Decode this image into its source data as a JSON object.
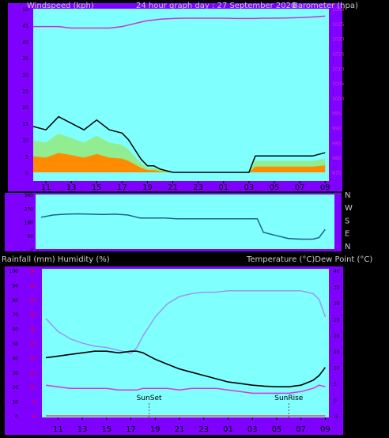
{
  "header": {
    "left": "Windspeed (kph)",
    "center": "24 hour graph day : 27 September 2020",
    "right": "Barometer (hpa)"
  },
  "panel3_header": {
    "left": "Rainfall (mm)  Humidity (%)",
    "right": "Temperature (°C)Dew Point (°C)"
  },
  "x_ticks": [
    "11",
    "13",
    "15",
    "17",
    "19",
    "21",
    "23",
    "01",
    "03",
    "05",
    "07",
    "09"
  ],
  "colors": {
    "page": "#000000",
    "frame": "#7f00ff",
    "plot": "#80ffff",
    "wind_speed": "#000000",
    "wind_gust": "#00b000",
    "wind_band": "#90ee90",
    "wind_orange": "#ff8c00",
    "barometer": "#cc33cc",
    "direction": "#1e5f8a",
    "temperature": "#000000",
    "humidity": "#9999ee",
    "dew_point": "#dd33dd",
    "rain_axis": "#ff0000"
  },
  "chart_data": [
    {
      "type": "line",
      "title": "24 hour graph day : 27 September 2020",
      "ylabel": "Windspeed (kph)",
      "y2label": "Barometer (hpa)",
      "ylim": [
        0,
        50
      ],
      "y2lim": [
        975,
        1030
      ],
      "yticks": [
        "50",
        "45",
        "40",
        "35",
        "30",
        "25",
        "20",
        "15",
        "10",
        "5",
        "0"
      ],
      "y2ticks": [
        "1030",
        "1025",
        "1020",
        "1015",
        "1010",
        "1005",
        "1000",
        "995",
        "990",
        "985",
        "980",
        "975"
      ],
      "x_hours": [
        10,
        11,
        12,
        13,
        14,
        15,
        16,
        17,
        17.5,
        18,
        18.5,
        19,
        19.5,
        20,
        21,
        22,
        23,
        0,
        1,
        2,
        3,
        3.5,
        4,
        5,
        6,
        7,
        8,
        9
      ],
      "series": [
        {
          "name": "Windspeed (kph)",
          "values": [
            14,
            13,
            17,
            15,
            13,
            16,
            13,
            12,
            10,
            7,
            4,
            2,
            2,
            1,
            0,
            0,
            0,
            0,
            0,
            0,
            0,
            5,
            5,
            5,
            5,
            5,
            5,
            6
          ]
        },
        {
          "name": "Barometer (hpa)",
          "values": [
            1024,
            1024,
            1024,
            1023.5,
            1023.5,
            1023.5,
            1023.5,
            1024,
            1024.5,
            1025,
            1025.5,
            1026,
            1026.2,
            1026.5,
            1026.7,
            1026.8,
            1026.8,
            1026.8,
            1026.8,
            1026.7,
            1026.7,
            1026.7,
            1026.8,
            1026.8,
            1026.9,
            1027,
            1027.2,
            1027.5
          ]
        }
      ]
    },
    {
      "type": "line",
      "title": "",
      "ylabel": "Wind direction",
      "direction_labels": [
        "N",
        "W",
        "S",
        "E",
        "N"
      ],
      "y_axis_labels": [
        "360",
        "270",
        "180",
        "90",
        "0"
      ],
      "ylim": [
        0,
        360
      ],
      "x_hours": [
        10,
        11,
        12,
        13,
        14,
        15,
        16,
        17,
        17.5,
        18,
        19,
        20,
        21,
        22,
        23,
        0,
        1,
        2,
        3,
        3.5,
        4,
        5,
        6,
        7,
        8,
        8.5,
        9
      ],
      "series": [
        {
          "name": "Direction",
          "values": [
            210,
            225,
            230,
            232,
            230,
            228,
            230,
            225,
            215,
            205,
            205,
            205,
            200,
            200,
            200,
            200,
            200,
            200,
            200,
            200,
            110,
            90,
            70,
            65,
            65,
            75,
            130
          ]
        }
      ]
    },
    {
      "type": "line",
      "title": "",
      "ylabel": "Rainfall (mm)  Humidity (%)",
      "y2label": "Temperature (°C)Dew Point (°C)",
      "humidity_ylim": [
        0,
        100
      ],
      "rain_ylim": [
        0,
        50
      ],
      "temp_ylim": [
        -5,
        40
      ],
      "humidity_ticks": [
        "100",
        "90",
        "80",
        "70",
        "60",
        "50",
        "40",
        "30",
        "20",
        "10",
        "0"
      ],
      "rain_ticks": [
        "50",
        "45",
        "40",
        "35",
        "30",
        "25",
        "20",
        "15",
        "10",
        "5",
        "0"
      ],
      "temp_ticks": [
        "40",
        "35",
        "30",
        "25",
        "20",
        "15",
        "10",
        "5",
        "0",
        "-5"
      ],
      "x_hours": [
        10,
        11,
        12,
        13,
        14,
        15,
        16,
        17,
        17.5,
        18,
        19,
        20,
        21,
        22,
        23,
        0,
        1,
        2,
        3,
        4,
        5,
        6,
        7,
        8,
        8.5,
        9
      ],
      "series": [
        {
          "name": "Temperature (°C)",
          "values": [
            13,
            13.5,
            14,
            14.5,
            15,
            15,
            14.5,
            15,
            15,
            14.5,
            12.5,
            11,
            9.5,
            8.5,
            7.5,
            6.5,
            5.5,
            5,
            4.5,
            4.2,
            4,
            4,
            4.5,
            6,
            7.5,
            10
          ]
        },
        {
          "name": "Humidity (%)",
          "values": [
            67,
            58,
            53,
            50,
            48,
            47,
            45,
            43,
            47,
            55,
            68,
            77,
            82,
            84,
            85,
            85,
            86,
            86,
            86,
            86,
            86,
            86,
            86,
            84,
            80,
            68
          ]
        },
        {
          "name": "Dew Point (°C)",
          "values": [
            4.5,
            4,
            3.5,
            3.5,
            3.5,
            3.5,
            3,
            3,
            3,
            3.5,
            3.5,
            3.5,
            3,
            3.5,
            3.5,
            3.5,
            3,
            2.5,
            2,
            2,
            2,
            2,
            2.5,
            3.5,
            4.5,
            4
          ]
        },
        {
          "name": "Rainfall (mm)",
          "values": [
            0,
            0,
            0,
            0,
            0,
            0,
            0,
            0,
            0,
            0,
            0,
            0,
            0,
            0,
            0,
            0,
            0,
            0,
            0,
            0,
            0,
            0,
            0,
            0,
            0,
            0
          ]
        }
      ],
      "annotations": [
        {
          "label": "SunSet",
          "hour": 18.5
        },
        {
          "label": "SunRise",
          "hour": 6.0
        }
      ]
    }
  ]
}
